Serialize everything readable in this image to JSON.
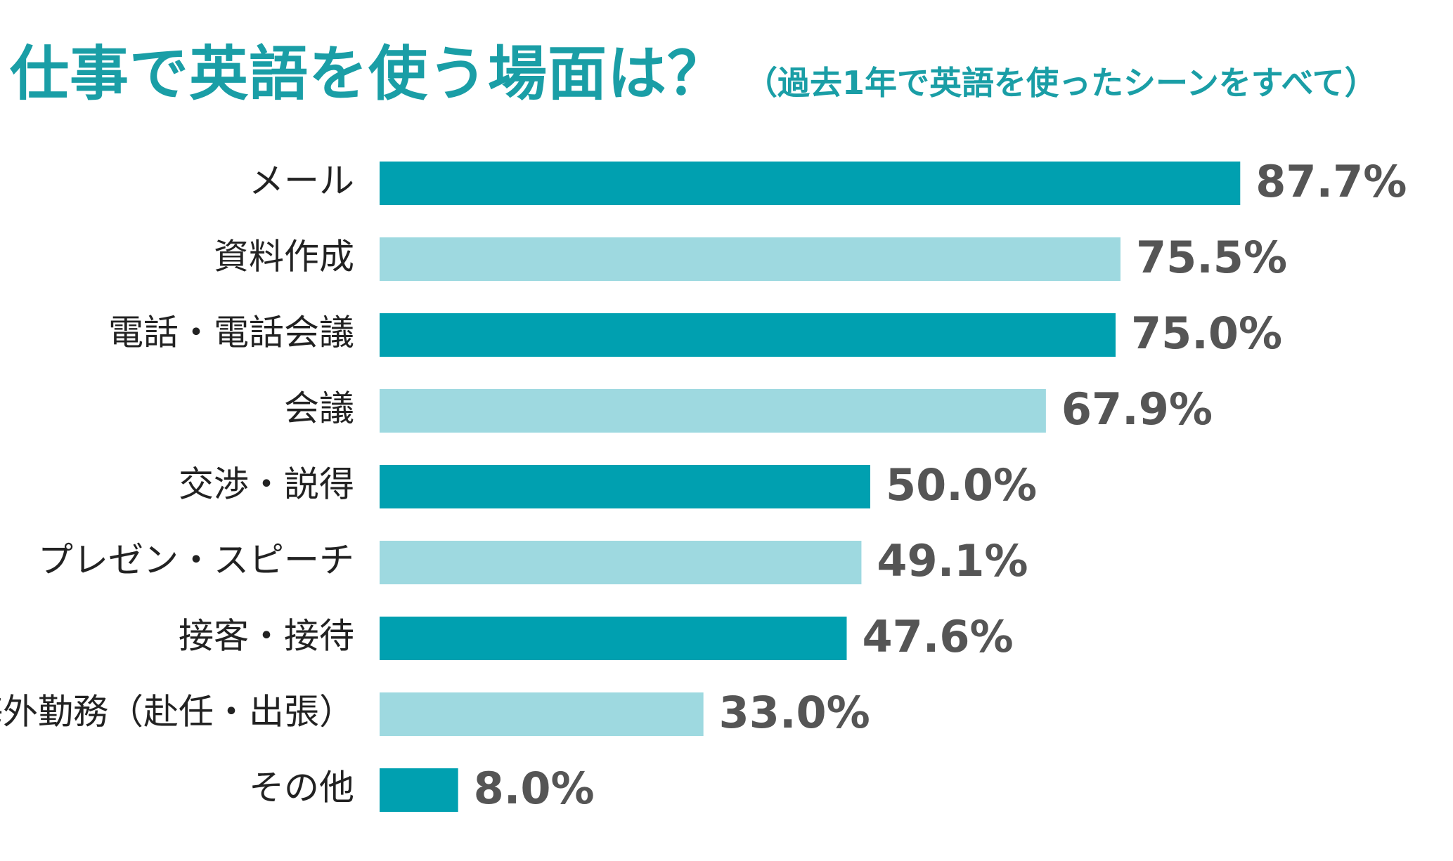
{
  "chart_data": {
    "type": "bar",
    "orientation": "horizontal",
    "title": "仕事で英語を使う場面は？",
    "subtitle": "（過去1年で英語を使ったシーンをすべて）",
    "categories": [
      "メール",
      "資料作成",
      "電話・電話会議",
      "会議",
      "交渉・説得",
      "プレゼン・スピーチ",
      "接客・接待",
      "海外勤務（赴任・出張）",
      "その他"
    ],
    "values": [
      87.7,
      75.5,
      75.0,
      67.9,
      50.0,
      49.1,
      47.6,
      33.0,
      8.0
    ],
    "value_labels": [
      "87.7%",
      "75.5%",
      "75.0%",
      "67.9%",
      "50.0%",
      "49.1%",
      "47.6%",
      "33.0%",
      "8.0%"
    ],
    "unit": "%",
    "xlim": [
      0,
      100
    ],
    "grid": false,
    "colors": {
      "dark": "#00a0b0",
      "light": "#9ed9e0",
      "title": "#1a9ea6",
      "value_text": "#555555",
      "label_text": "#222222"
    }
  }
}
